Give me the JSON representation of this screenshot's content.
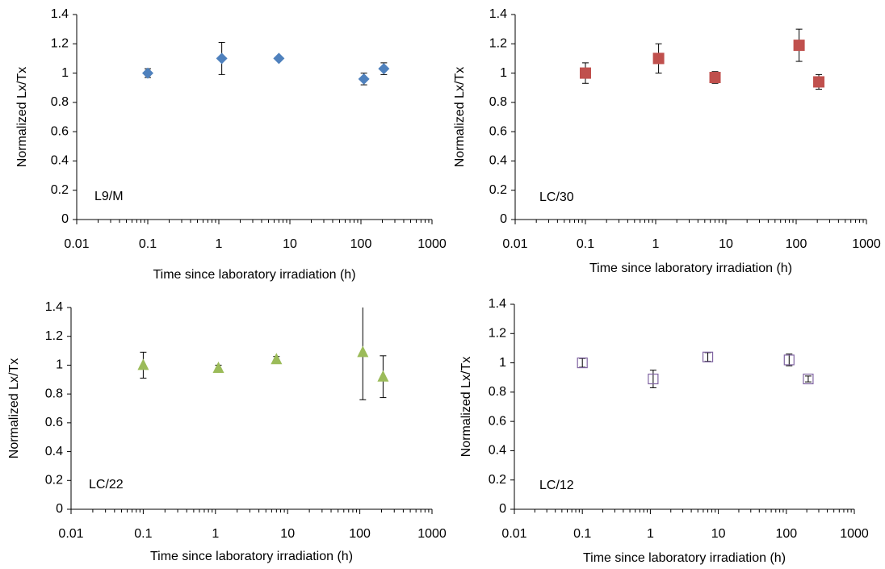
{
  "chart_data": [
    {
      "type": "scatter",
      "annotation": "L9/M",
      "y_label": "Normalized Lx/Tx",
      "x_label": "Time since laboratory irradiation (h)",
      "x": [
        0.1,
        1.1,
        7,
        110,
        210
      ],
      "values": [
        1.0,
        1.1,
        1.1,
        0.96,
        1.03
      ],
      "errors": [
        0.03,
        0.11,
        0.01,
        0.04,
        0.04
      ],
      "color": "#4f81bd",
      "marker": "diamond",
      "log_x": true,
      "xlim": [
        0.01,
        1000
      ],
      "xticks": [
        0.01,
        0.1,
        1,
        10,
        100,
        1000
      ],
      "ylim": [
        0,
        1.4
      ],
      "yticks": [
        0,
        0.2,
        0.4,
        0.6,
        0.8,
        1,
        1.2,
        1.4
      ]
    },
    {
      "type": "scatter",
      "annotation": "LC/30",
      "y_label": "Normalized Lx/Tx",
      "x_label": "Time since laboratory irradiation (h)",
      "x": [
        0.1,
        1.1,
        7,
        110,
        210
      ],
      "values": [
        1.0,
        1.1,
        0.97,
        1.19,
        0.94
      ],
      "errors": [
        0.07,
        0.1,
        0.04,
        0.11,
        0.05
      ],
      "color": "#c0504d",
      "marker": "square",
      "log_x": true,
      "xlim": [
        0.01,
        1000
      ],
      "xticks": [
        0.01,
        0.1,
        1,
        10,
        100,
        1000
      ],
      "ylim": [
        0,
        1.4
      ],
      "yticks": [
        0,
        0.2,
        0.4,
        0.6,
        0.8,
        1,
        1.2,
        1.4
      ]
    },
    {
      "type": "scatter",
      "annotation": "LC/22",
      "y_label": "Normalized Lx/Tx",
      "x_label": "Time since laboratory irradiation (h)",
      "x": [
        0.1,
        1.1,
        7,
        110,
        210
      ],
      "values": [
        1.0,
        0.98,
        1.04,
        1.09,
        0.92
      ],
      "errors": [
        0.09,
        0.02,
        0.02,
        0.33,
        0.145
      ],
      "color": "#9bbb59",
      "marker": "triangle",
      "log_x": true,
      "xlim": [
        0.01,
        1000
      ],
      "xticks": [
        0.01,
        0.1,
        1,
        10,
        100,
        1000
      ],
      "ylim": [
        0,
        1.4
      ],
      "yticks": [
        0,
        0.2,
        0.4,
        0.6,
        0.8,
        1,
        1.2,
        1.4
      ]
    },
    {
      "type": "scatter",
      "annotation": "LC/12",
      "y_label": "Normalized Lx/Tx",
      "x_label": "Time since laboratory irradiation (h)",
      "x": [
        0.1,
        1.1,
        7,
        110,
        210
      ],
      "values": [
        1.0,
        0.89,
        1.04,
        1.02,
        0.89
      ],
      "errors": [
        0.03,
        0.06,
        0.03,
        0.04,
        0.02
      ],
      "color": "#8064a2",
      "marker": "open-square",
      "log_x": true,
      "xlim": [
        0.01,
        1000
      ],
      "xticks": [
        0.01,
        0.1,
        1,
        10,
        100,
        1000
      ],
      "ylim": [
        0,
        1.4
      ],
      "yticks": [
        0,
        0.2,
        0.4,
        0.6,
        0.8,
        1,
        1.2,
        1.4
      ]
    }
  ]
}
